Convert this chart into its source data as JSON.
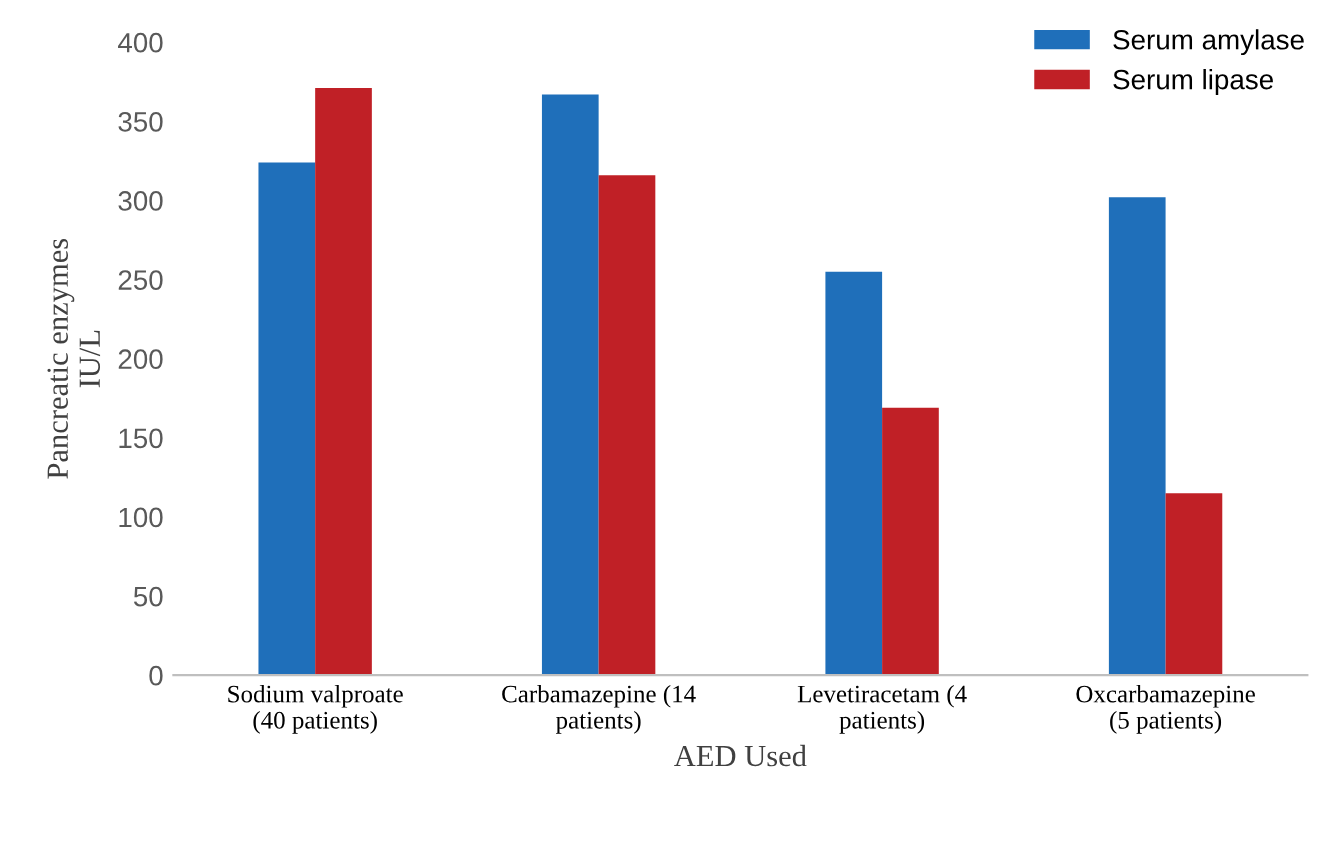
{
  "chart_data": {
    "type": "bar",
    "xlabel": "AED Used",
    "ylabel": "Pancreatic enzymes\nIU/L",
    "categories": [
      "Sodium valproate\n(40 patients)",
      "Carbamazepine (14\npatients)",
      "Levetiracetam (4\npatients)",
      "Oxcarbamazepine\n(5 patients)"
    ],
    "series": [
      {
        "name": "Serum amylase",
        "color": "#1f6fba",
        "values": [
          324,
          367,
          255,
          302
        ]
      },
      {
        "name": "Serum lipase",
        "color": "#c02026",
        "values": [
          371,
          316,
          169,
          115
        ]
      }
    ],
    "ylim": [
      0,
      400
    ],
    "yticks": [
      0,
      50,
      100,
      150,
      200,
      250,
      300,
      350,
      400
    ],
    "grid": false,
    "legend": "top right"
  }
}
